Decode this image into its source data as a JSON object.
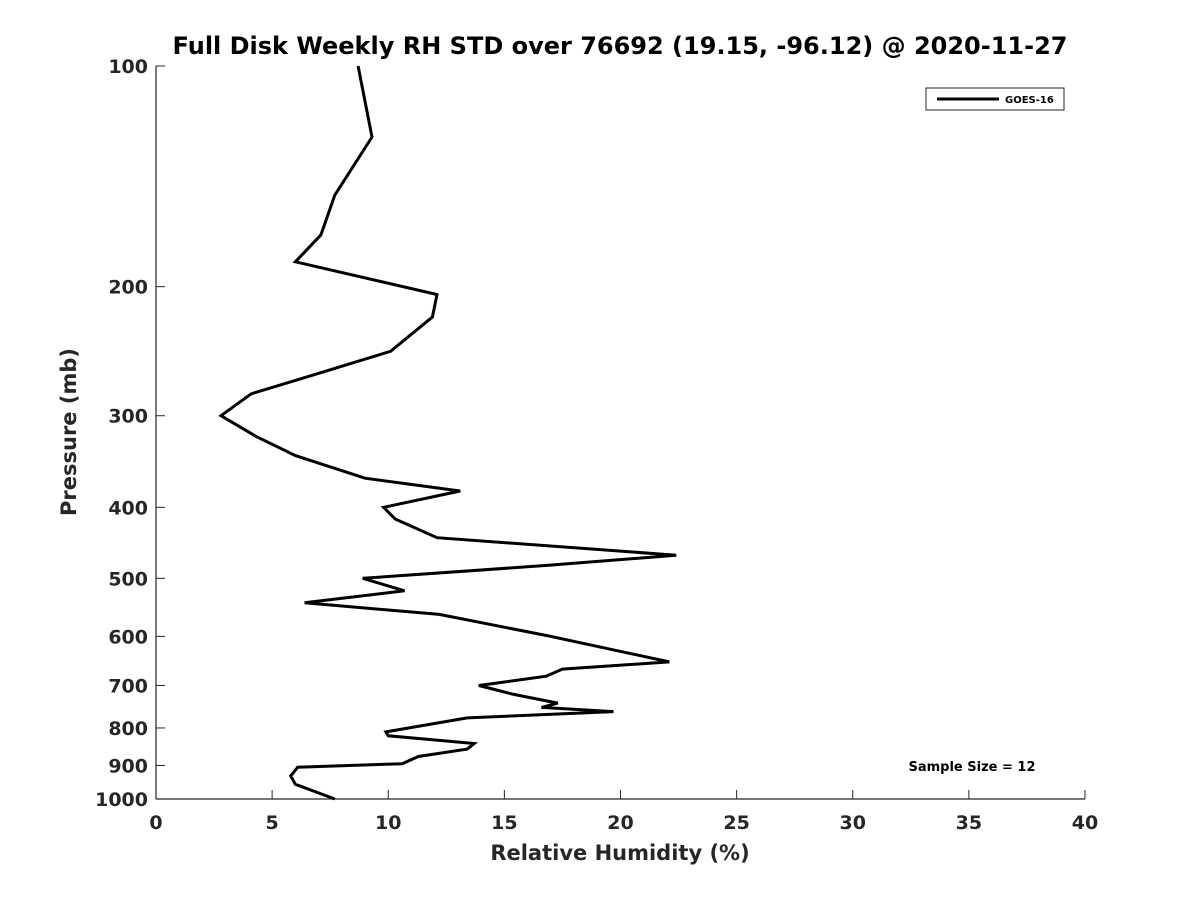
{
  "chart_data": {
    "type": "line",
    "title": "Full Disk Weekly RH STD over 76692 (19.15, -96.12) @ 2020-11-27",
    "xlabel": "Relative Humidity (%)",
    "ylabel": "Pressure (mb)",
    "xlim": [
      0,
      40
    ],
    "ylim": [
      100,
      1000
    ],
    "yscale": "log",
    "y_inverted": true,
    "xticks": [
      "0",
      "5",
      "10",
      "15",
      "20",
      "25",
      "30",
      "35",
      "40"
    ],
    "yticks": [
      "100",
      "200",
      "300",
      "400",
      "500",
      "600",
      "700",
      "800",
      "900",
      "1000"
    ],
    "grid": false,
    "legend_position": "top-right",
    "series": [
      {
        "name": "GOES-16",
        "color": "#000000",
        "points": [
          [
            8.7,
            100
          ],
          [
            9.3,
            125
          ],
          [
            7.7,
            150
          ],
          [
            7.1,
            170
          ],
          [
            6.0,
            185
          ],
          [
            12.1,
            205
          ],
          [
            11.9,
            220
          ],
          [
            10.1,
            245
          ],
          [
            6.6,
            265
          ],
          [
            4.1,
            280
          ],
          [
            2.8,
            300
          ],
          [
            4.3,
            320
          ],
          [
            6.0,
            340
          ],
          [
            9.0,
            365
          ],
          [
            13.1,
            380
          ],
          [
            9.8,
            400
          ],
          [
            10.3,
            415
          ],
          [
            12.1,
            440
          ],
          [
            22.4,
            465
          ],
          [
            16.9,
            480
          ],
          [
            8.9,
            500
          ],
          [
            10.7,
            520
          ],
          [
            6.4,
            540
          ],
          [
            12.2,
            560
          ],
          [
            17.0,
            600
          ],
          [
            22.1,
            650
          ],
          [
            17.5,
            665
          ],
          [
            16.8,
            680
          ],
          [
            13.9,
            700
          ],
          [
            15.4,
            720
          ],
          [
            17.3,
            740
          ],
          [
            16.6,
            750
          ],
          [
            19.7,
            760
          ],
          [
            13.4,
            775
          ],
          [
            9.9,
            810
          ],
          [
            10.0,
            820
          ],
          [
            13.7,
            840
          ],
          [
            13.4,
            855
          ],
          [
            11.3,
            875
          ],
          [
            10.6,
            895
          ],
          [
            6.1,
            905
          ],
          [
            5.8,
            930
          ],
          [
            6.0,
            955
          ],
          [
            7.7,
            1000
          ]
        ]
      }
    ],
    "annotations": [
      "Sample Size = 12"
    ]
  }
}
